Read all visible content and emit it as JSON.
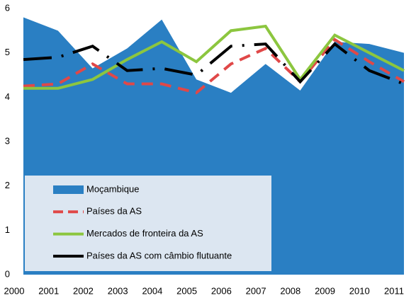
{
  "chart_data": {
    "type": "line",
    "categories": [
      "2000",
      "2001",
      "2002",
      "2003",
      "2004",
      "2005",
      "2006",
      "2007",
      "2008",
      "2009",
      "2010",
      "2011"
    ],
    "ylim": [
      0,
      6
    ],
    "yticks": [
      0,
      1,
      2,
      3,
      4,
      5,
      6
    ],
    "series": [
      {
        "name": "Moçambique",
        "color": "#2a7fc3",
        "style": "area",
        "values": [
          5.8,
          5.5,
          4.65,
          5.1,
          5.75,
          4.4,
          4.1,
          4.75,
          4.15,
          5.25,
          5.2,
          5.0
        ]
      },
      {
        "name": "Países da AS",
        "color": "#e04848",
        "style": "dashed",
        "values": [
          4.25,
          4.3,
          4.75,
          4.3,
          4.3,
          4.1,
          4.75,
          5.1,
          4.35,
          5.3,
          4.8,
          4.35
        ]
      },
      {
        "name": "Mercados de fronteira da AS",
        "color": "#8cc63f",
        "style": "solid",
        "values": [
          4.2,
          4.2,
          4.4,
          4.85,
          5.25,
          4.8,
          5.5,
          5.6,
          4.4,
          5.4,
          5.0,
          4.6
        ]
      },
      {
        "name": "Países da AS com câmbio flutuante",
        "color": "#000000",
        "style": "dash-dot",
        "values": [
          4.85,
          4.9,
          5.15,
          4.6,
          4.65,
          4.5,
          5.15,
          5.2,
          4.35,
          5.2,
          4.6,
          4.3
        ]
      }
    ]
  }
}
